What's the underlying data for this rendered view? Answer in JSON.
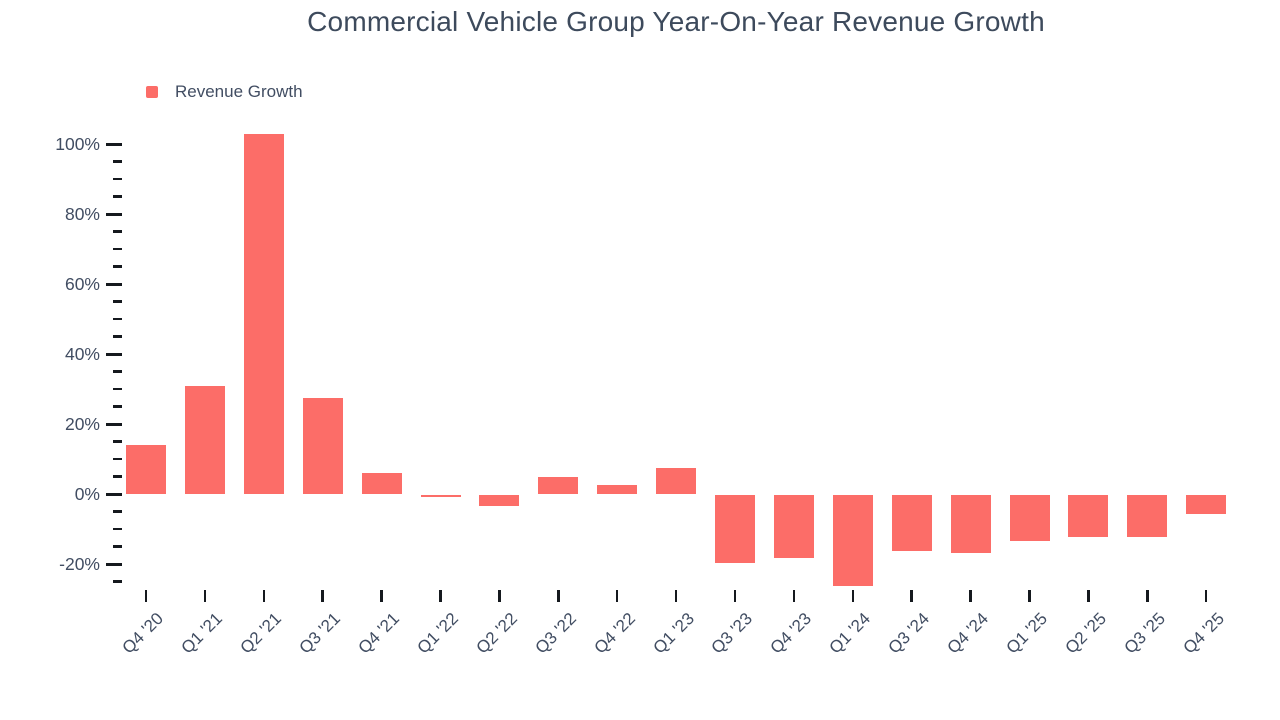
{
  "page": {
    "background": "#ffffff"
  },
  "chart_data": {
    "type": "bar",
    "title": "Commercial Vehicle Group Year-On-Year Revenue Growth",
    "xlabel": "",
    "ylabel": "",
    "categories": [
      "Q4 '20",
      "Q1 '21",
      "Q2 '21",
      "Q3 '21",
      "Q4 '21",
      "Q1 '22",
      "Q2 '22",
      "Q3 '22",
      "Q4 '22",
      "Q1 '23",
      "Q3 '23",
      "Q4 '23",
      "Q1 '24",
      "Q3 '24",
      "Q4 '24",
      "Q1 '25",
      "Q2 '25",
      "Q3 '25",
      "Q4 '25"
    ],
    "series": [
      {
        "name": "Revenue Growth",
        "color": "#FC6D68",
        "values": [
          14,
          31,
          103,
          27.5,
          6,
          -0.5,
          -3,
          5,
          2.5,
          7.5,
          -19.5,
          -18,
          -26,
          -16,
          -16.5,
          -13,
          -12,
          -12,
          -5.5
        ]
      }
    ],
    "ylim": [
      -25,
      103
    ],
    "yticks_major": [
      100,
      80,
      60,
      40,
      20,
      0,
      -20
    ],
    "ytick_suffix": "%",
    "ytick_minor_step": 5,
    "ytick_minor_range": [
      -25,
      95
    ],
    "grid": false,
    "legend_position": "top-left",
    "colors": {
      "bar": "#FC6D68",
      "axis_text": "#414D62",
      "title_text": "#3D4A5C",
      "tick_mark": "#15191E"
    }
  }
}
